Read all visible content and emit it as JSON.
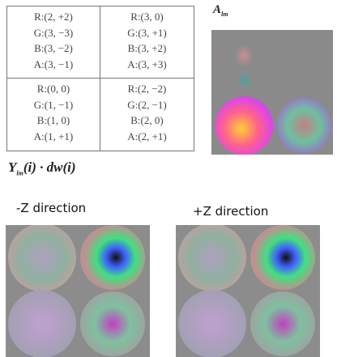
{
  "table": {
    "rows": [
      [
        [
          "R:(2, +2)",
          "G:(3, −3)",
          "B:(3, −2)",
          "A:(3, −1)"
        ],
        [
          "R:(3, 0)",
          "G:(3, +1)",
          "B:(3, +2)",
          "A:(3, +3)"
        ]
      ],
      [
        [
          "R:(0, 0)",
          "G:(1, −1)",
          "B:(1, 0)",
          "A:(1, +1)"
        ],
        [
          "R:(2, −2)",
          "G:(2, −1)",
          "B:(2, 0)",
          "A:(2, +1)"
        ]
      ]
    ]
  },
  "alm_label": {
    "base": "A",
    "sub": "lm"
  },
  "formula": {
    "base": "Y",
    "sub": "lm",
    "rest": "(i) · dw(i)"
  },
  "captions": [
    "-Z direction",
    "+Z direction"
  ]
}
